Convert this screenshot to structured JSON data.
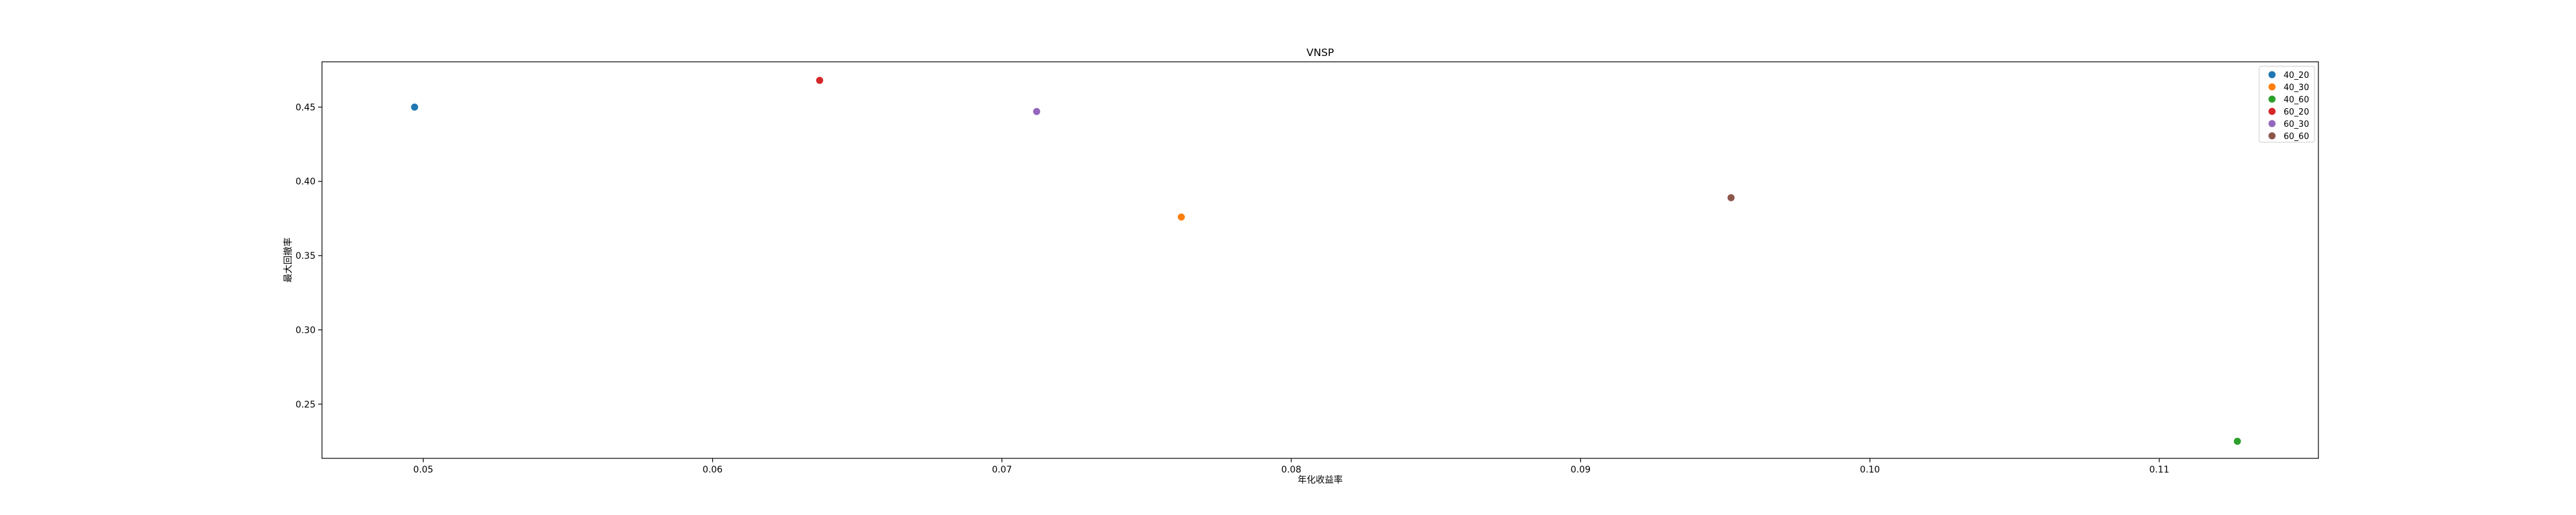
{
  "chart_data": {
    "type": "scatter",
    "title": "VNSP",
    "xlabel": "年化收益率",
    "ylabel": "最大回撤率",
    "xlim": [
      0.0465,
      0.1155
    ],
    "ylim": [
      0.2135,
      0.4805
    ],
    "xticks": [
      0.05,
      0.06,
      0.07,
      0.08,
      0.09,
      0.1,
      0.11
    ],
    "xtick_labels": [
      "0.05",
      "0.06",
      "0.07",
      "0.08",
      "0.09",
      "0.10",
      "0.11"
    ],
    "yticks": [
      0.25,
      0.3,
      0.35,
      0.4,
      0.45
    ],
    "ytick_labels": [
      "0.25",
      "0.30",
      "0.35",
      "0.40",
      "0.45"
    ],
    "grid": false,
    "legend_position": "top-right",
    "series": [
      {
        "name": "40_20",
        "color": "#1f77b4",
        "points": [
          {
            "x": 0.0497,
            "y": 0.45
          }
        ]
      },
      {
        "name": "40_30",
        "color": "#ff7f0e",
        "points": [
          {
            "x": 0.0762,
            "y": 0.376
          }
        ]
      },
      {
        "name": "40_60",
        "color": "#2ca02c",
        "points": [
          {
            "x": 0.1127,
            "y": 0.225
          }
        ]
      },
      {
        "name": "60_20",
        "color": "#d62728",
        "points": [
          {
            "x": 0.0637,
            "y": 0.468
          }
        ]
      },
      {
        "name": "60_30",
        "color": "#9467bd",
        "points": [
          {
            "x": 0.0712,
            "y": 0.447
          }
        ]
      },
      {
        "name": "60_60",
        "color": "#8c564b",
        "points": [
          {
            "x": 0.0952,
            "y": 0.389
          }
        ]
      }
    ]
  }
}
